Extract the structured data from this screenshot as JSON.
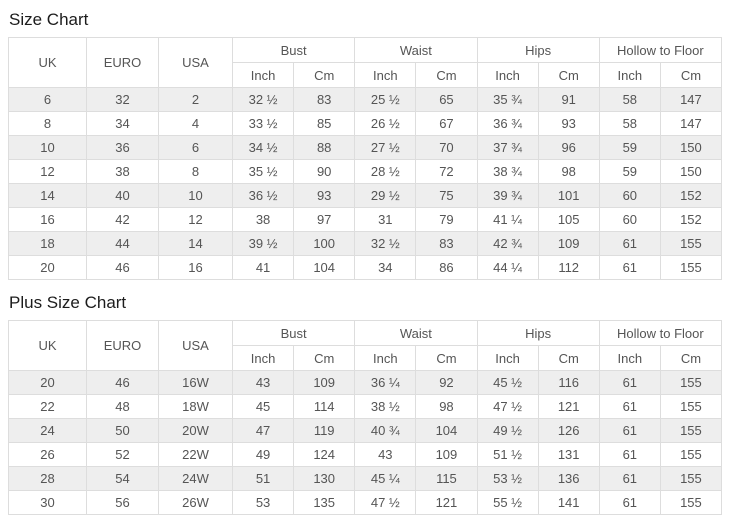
{
  "colors": {
    "row_alt_bg": "#eeeeee",
    "border": "#dddddd",
    "cell_text": "#555555",
    "title_text": "#1c1c1c"
  },
  "size_chart": {
    "title": "Size Chart",
    "header": {
      "uk": "UK",
      "euro": "EURO",
      "usa": "USA",
      "groups": [
        "Bust",
        "Waist",
        "Hips",
        "Hollow to Floor"
      ],
      "sub": [
        "Inch",
        "Cm"
      ]
    },
    "rows": [
      [
        "6",
        "32",
        "2",
        "32 ½",
        "83",
        "25 ½",
        "65",
        "35 ¾",
        "91",
        "58",
        "147"
      ],
      [
        "8",
        "34",
        "4",
        "33 ½",
        "85",
        "26 ½",
        "67",
        "36 ¾",
        "93",
        "58",
        "147"
      ],
      [
        "10",
        "36",
        "6",
        "34 ½",
        "88",
        "27 ½",
        "70",
        "37 ¾",
        "96",
        "59",
        "150"
      ],
      [
        "12",
        "38",
        "8",
        "35 ½",
        "90",
        "28 ½",
        "72",
        "38 ¾",
        "98",
        "59",
        "150"
      ],
      [
        "14",
        "40",
        "10",
        "36 ½",
        "93",
        "29 ½",
        "75",
        "39 ¾",
        "101",
        "60",
        "152"
      ],
      [
        "16",
        "42",
        "12",
        "38",
        "97",
        "31",
        "79",
        "41 ¼",
        "105",
        "60",
        "152"
      ],
      [
        "18",
        "44",
        "14",
        "39 ½",
        "100",
        "32 ½",
        "83",
        "42 ¾",
        "109",
        "61",
        "155"
      ],
      [
        "20",
        "46",
        "16",
        "41",
        "104",
        "34",
        "86",
        "44 ¼",
        "112",
        "61",
        "155"
      ]
    ]
  },
  "plus_size_chart": {
    "title": "Plus Size Chart",
    "header": {
      "uk": "UK",
      "euro": "EURO",
      "usa": "USA",
      "groups": [
        "Bust",
        "Waist",
        "Hips",
        "Hollow to Floor"
      ],
      "sub": [
        "Inch",
        "Cm"
      ]
    },
    "rows": [
      [
        "20",
        "46",
        "16W",
        "43",
        "109",
        "36 ¼",
        "92",
        "45 ½",
        "116",
        "61",
        "155"
      ],
      [
        "22",
        "48",
        "18W",
        "45",
        "114",
        "38 ½",
        "98",
        "47 ½",
        "121",
        "61",
        "155"
      ],
      [
        "24",
        "50",
        "20W",
        "47",
        "119",
        "40 ¾",
        "104",
        "49 ½",
        "126",
        "61",
        "155"
      ],
      [
        "26",
        "52",
        "22W",
        "49",
        "124",
        "43",
        "109",
        "51 ½",
        "131",
        "61",
        "155"
      ],
      [
        "28",
        "54",
        "24W",
        "51",
        "130",
        "45 ¼",
        "115",
        "53 ½",
        "136",
        "61",
        "155"
      ],
      [
        "30",
        "56",
        "26W",
        "53",
        "135",
        "47 ½",
        "121",
        "55 ½",
        "141",
        "61",
        "155"
      ]
    ]
  }
}
